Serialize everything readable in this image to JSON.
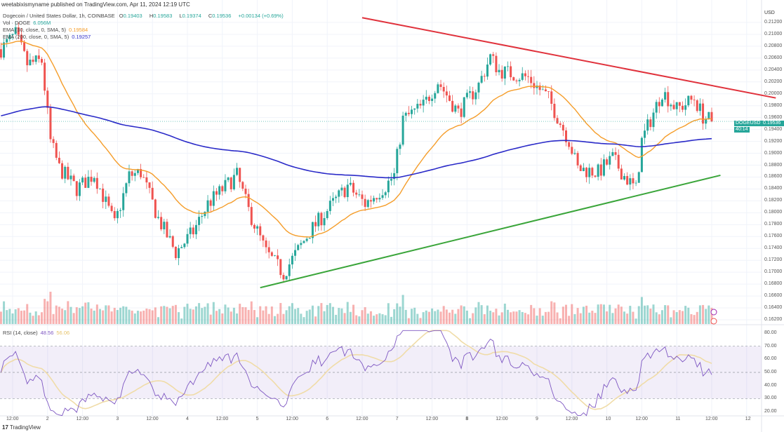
{
  "publisher_line": "weetabixismyname published on TradingView.com, Apr 11, 2024 12:19 UTC",
  "symbol": {
    "title": "Dogecoin / United States Dollar, 1h, COINBASE",
    "open_label": "O",
    "open": "0.19403",
    "high_label": "H",
    "high": "0.19583",
    "low_label": "L",
    "low": "0.19374",
    "close_label": "C",
    "close": "0.19536",
    "change": "+0.00134 (+0.69%)"
  },
  "indicators": {
    "volume": {
      "label": "Vol · DOGE",
      "value": "6.056M"
    },
    "ema30": {
      "label": "EMA (30, close, 0, SMA, 5)",
      "value": "0.19584",
      "color": "#f59d2a"
    },
    "ema200": {
      "label": "EMA (200, close, 0, SMA, 5)",
      "value": "0.19257",
      "color": "#2a2ac8"
    },
    "rsi": {
      "label": "RSI (14, close)",
      "value": "48.56",
      "ma_value": "56.06",
      "color": "#7e57c2",
      "ma_color": "#f0dca8"
    }
  },
  "price_axis": {
    "currency": "USD",
    "ticks": [
      "0.21200",
      "0.21000",
      "0.20800",
      "0.20600",
      "0.20400",
      "0.20200",
      "0.20000",
      "0.19800",
      "0.19600",
      "0.19400",
      "0.19200",
      "0.19000",
      "0.18800",
      "0.18600",
      "0.18400",
      "0.18200",
      "0.18000",
      "0.17800",
      "0.17600",
      "0.17400",
      "0.17200",
      "0.17000",
      "0.16800",
      "0.16600",
      "0.16400",
      "0.16200"
    ],
    "last_symbol": "DOGEUSD",
    "last_price": "0.19536",
    "countdown": "40:14"
  },
  "rsi_axis": {
    "ticks": [
      "80.00",
      "70.00",
      "60.00",
      "50.00",
      "40.00",
      "30.00",
      "20.00"
    ]
  },
  "time_axis": {
    "ticks": [
      "12:00",
      "2",
      "12:00",
      "3",
      "12:00",
      "4",
      "12:00",
      "5",
      "12:00",
      "6",
      "12:00",
      "7",
      "12:00",
      "8",
      "12:00",
      "9",
      "12:00",
      "10",
      "12:00",
      "11",
      "12:00",
      "12"
    ]
  },
  "brand": "TradingView",
  "colors": {
    "up": "#26a69a",
    "down": "#ef5350",
    "resistance": "#e0323c",
    "support": "#3aa53a"
  },
  "chart_data": {
    "type": "candlestick",
    "interval": "1h",
    "x_range": [
      "Apr 1 08:00",
      "Apr 12 14:00"
    ],
    "ylim": [
      0.161,
      0.2135
    ],
    "approx_close_path": [
      [
        "Apr 1 08:00",
        0.2075
      ],
      [
        "Apr 1 13:00",
        0.21
      ],
      [
        "Apr 1 17:00",
        0.205
      ],
      [
        "Apr 1 22:00",
        0.2055
      ],
      [
        "Apr 2 01:00",
        0.192
      ],
      [
        "Apr 2 04:00",
        0.1875
      ],
      [
        "Apr 2 10:00",
        0.184
      ],
      [
        "Apr 2 16:00",
        0.1865
      ],
      [
        "Apr 2 23:00",
        0.178
      ],
      [
        "Apr 3 04:00",
        0.1862
      ],
      [
        "Apr 3 08:00",
        0.1868
      ],
      [
        "Apr 3 14:00",
        0.179
      ],
      [
        "Apr 3 20:00",
        0.1733
      ],
      [
        "Apr 4 02:00",
        0.1768
      ],
      [
        "Apr 4 07:00",
        0.1815
      ],
      [
        "Apr 4 17:00",
        0.1863
      ],
      [
        "Apr 4 21:00",
        0.1804
      ],
      [
        "Apr 5 03:00",
        0.1733
      ],
      [
        "Apr 5 09:00",
        0.1698
      ],
      [
        "Apr 5 12:00",
        0.1722
      ],
      [
        "Apr 5 18:00",
        0.1768
      ],
      [
        "Apr 6 00:00",
        0.1804
      ],
      [
        "Apr 6 07:00",
        0.1845
      ],
      [
        "Apr 6 13:00",
        0.1815
      ],
      [
        "Apr 6 20:00",
        0.1845
      ],
      [
        "Apr 6 23:00",
        0.1863
      ],
      [
        "Apr 7 02:00",
        0.1957
      ],
      [
        "Apr 7 09:00",
        0.198
      ],
      [
        "Apr 7 14:00",
        0.2021
      ],
      [
        "Apr 7 21:00",
        0.1968
      ],
      [
        "Apr 8 04:00",
        0.2015
      ],
      [
        "Apr 8 08:00",
        0.2062
      ],
      [
        "Apr 8 11:00",
        0.2039
      ],
      [
        "Apr 8 21:00",
        0.2027
      ],
      [
        "Apr 9 04:00",
        0.1992
      ],
      [
        "Apr 9 11:00",
        0.1921
      ],
      [
        "Apr 9 14:00",
        0.1874
      ],
      [
        "Apr 9 21:00",
        0.1868
      ],
      [
        "Apr 10 02:00",
        0.1892
      ],
      [
        "Apr 10 06:00",
        0.1862
      ],
      [
        "Apr 10 10:00",
        0.1839
      ],
      [
        "Apr 10 12:00",
        0.1921
      ],
      [
        "Apr 10 16:00",
        0.1968
      ],
      [
        "Apr 10 19:00",
        0.2004
      ],
      [
        "Apr 11 00:00",
        0.1974
      ],
      [
        "Apr 11 06:00",
        0.1992
      ],
      [
        "Apr 11 09:00",
        0.1962
      ],
      [
        "Apr 11 12:00",
        0.1954
      ]
    ],
    "trendlines": [
      {
        "role": "resistance",
        "from": [
          "Apr 6 12:00",
          0.2128
        ],
        "to": [
          "Apr 12 10:00",
          0.1993
        ]
      },
      {
        "role": "support",
        "from": [
          "Apr 5 01:00",
          0.1674
        ],
        "to": [
          "Apr 11 15:00",
          0.1863
        ]
      }
    ],
    "rsi_bands": [
      30,
      50,
      70
    ],
    "rsi_ylim": [
      16,
      83
    ]
  }
}
